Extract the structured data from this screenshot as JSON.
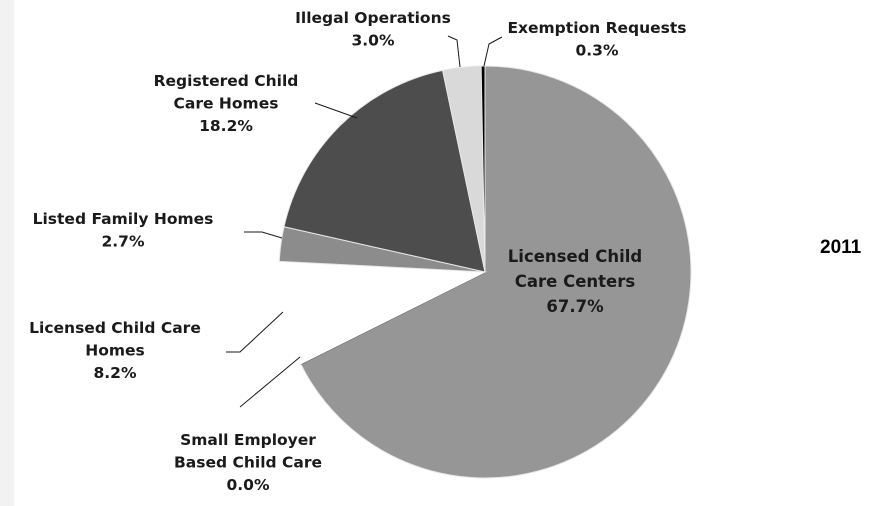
{
  "chart_data": {
    "type": "pie",
    "title": "",
    "annotation": "2011",
    "slices": [
      {
        "name": "Licensed Child Care Centers",
        "lines": [
          "Licensed Child",
          "Care Centers"
        ],
        "value": 67.7,
        "label": "67.7%",
        "color": "#969696"
      },
      {
        "name": "Small Employer Based Child Care",
        "lines": [
          "Small Employer",
          "Based Child Care"
        ],
        "value": 0.0,
        "label": "0.0%",
        "color": "#bfbfbf"
      },
      {
        "name": "Licensed Child Care Homes",
        "lines": [
          "Licensed Child Care",
          "Homes"
        ],
        "value": 8.2,
        "label": "8.2%",
        "color": "#ffffff"
      },
      {
        "name": "Listed Family Homes",
        "lines": [
          "Listed Family Homes"
        ],
        "value": 2.7,
        "label": "2.7%",
        "color": "#8c8c8c"
      },
      {
        "name": "Registered Child Care Homes",
        "lines": [
          "Registered Child",
          "Care Homes"
        ],
        "value": 18.2,
        "label": "18.2%",
        "color": "#4d4d4d"
      },
      {
        "name": "Illegal Operations",
        "lines": [
          "Illegal Operations"
        ],
        "value": 3.0,
        "label": "3.0%",
        "color": "#d9d9d9"
      },
      {
        "name": "Exemption Requests",
        "lines": [
          "Exemption Requests"
        ],
        "value": 0.3,
        "label": "0.3%",
        "color": "#000000"
      }
    ]
  }
}
